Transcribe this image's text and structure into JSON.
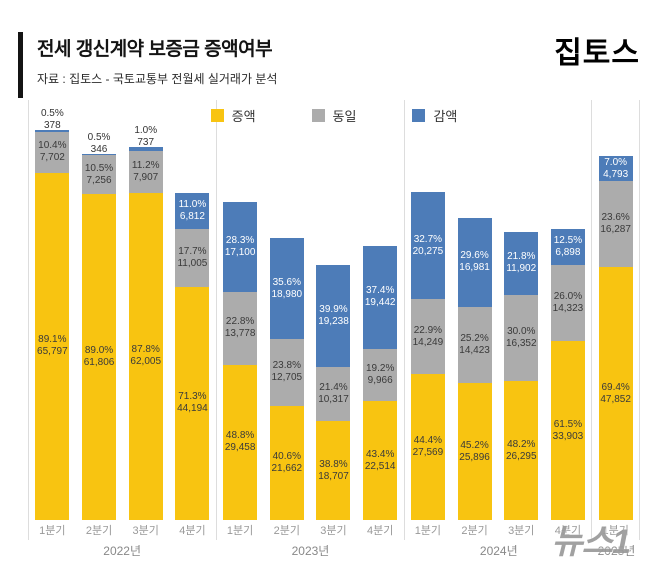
{
  "header": {
    "title": "전세 갱신계약 보증금 증액여부",
    "subtitle": "자료 : 집토스 - 국토교통부 전월세 실거래가 분석",
    "logo": "집토스"
  },
  "watermark": "뉴스1",
  "chart_data": {
    "type": "stacked-bar",
    "title": "전세 갱신계약 보증금 증액여부",
    "legend_position": "top-center",
    "stack_order_bottom_to_top": [
      "증액",
      "동일",
      "감액"
    ],
    "series": [
      {
        "key": "increase",
        "name": "증액",
        "color": "#F8C411"
      },
      {
        "key": "same",
        "name": "동일",
        "color": "#ACACAC"
      },
      {
        "key": "decrease",
        "name": "감액",
        "color": "#4D7CB8"
      }
    ],
    "groups": [
      {
        "year": "2022년",
        "bars": [
          {
            "quarter": "1분기",
            "increase": {
              "pct": 89.1,
              "count": 65797
            },
            "same": {
              "pct": 10.4,
              "count": 7702
            },
            "decrease": {
              "pct": 0.5,
              "count": 378
            }
          },
          {
            "quarter": "2분기",
            "increase": {
              "pct": 89.0,
              "count": 61806
            },
            "same": {
              "pct": 10.5,
              "count": 7256
            },
            "decrease": {
              "pct": 0.5,
              "count": 346
            }
          },
          {
            "quarter": "3분기",
            "increase": {
              "pct": 87.8,
              "count": 62005
            },
            "same": {
              "pct": 11.2,
              "count": 7907
            },
            "decrease": {
              "pct": 1.0,
              "count": 737
            }
          },
          {
            "quarter": "4분기",
            "increase": {
              "pct": 71.3,
              "count": 44194
            },
            "same": {
              "pct": 17.7,
              "count": 11005
            },
            "decrease": {
              "pct": 11.0,
              "count": 6812
            }
          }
        ]
      },
      {
        "year": "2023년",
        "bars": [
          {
            "quarter": "1분기",
            "increase": {
              "pct": 48.8,
              "count": 29458
            },
            "same": {
              "pct": 22.8,
              "count": 13778
            },
            "decrease": {
              "pct": 28.3,
              "count": 17100
            }
          },
          {
            "quarter": "2분기",
            "increase": {
              "pct": 40.6,
              "count": 21662
            },
            "same": {
              "pct": 23.8,
              "count": 12705
            },
            "decrease": {
              "pct": 35.6,
              "count": 18980
            }
          },
          {
            "quarter": "3분기",
            "increase": {
              "pct": 38.8,
              "count": 18707
            },
            "same": {
              "pct": 21.4,
              "count": 10317
            },
            "decrease": {
              "pct": 39.9,
              "count": 19238
            }
          },
          {
            "quarter": "4분기",
            "increase": {
              "pct": 43.4,
              "count": 22514
            },
            "same": {
              "pct": 19.2,
              "count": 9966
            },
            "decrease": {
              "pct": 37.4,
              "count": 19442
            }
          }
        ]
      },
      {
        "year": "2024년",
        "bars": [
          {
            "quarter": "1분기",
            "increase": {
              "pct": 44.4,
              "count": 27569
            },
            "same": {
              "pct": 22.9,
              "count": 14249
            },
            "decrease": {
              "pct": 32.7,
              "count": 20275
            }
          },
          {
            "quarter": "2분기",
            "increase": {
              "pct": 45.2,
              "count": 25896
            },
            "same": {
              "pct": 25.2,
              "count": 14423
            },
            "decrease": {
              "pct": 29.6,
              "count": 16981
            }
          },
          {
            "quarter": "3분기",
            "increase": {
              "pct": 48.2,
              "count": 26295
            },
            "same": {
              "pct": 30.0,
              "count": 16352
            },
            "decrease": {
              "pct": 21.8,
              "count": 11902
            }
          },
          {
            "quarter": "4분기",
            "increase": {
              "pct": 61.5,
              "count": 33903
            },
            "same": {
              "pct": 26.0,
              "count": 14323
            },
            "decrease": {
              "pct": 12.5,
              "count": 6898
            }
          }
        ]
      },
      {
        "year": "2025년",
        "bars": [
          {
            "quarter": "1분기",
            "increase": {
              "pct": 69.4,
              "count": 47852
            },
            "same": {
              "pct": 23.6,
              "count": 16287
            },
            "decrease": {
              "pct": 7.0,
              "count": 4793
            }
          }
        ]
      }
    ]
  }
}
